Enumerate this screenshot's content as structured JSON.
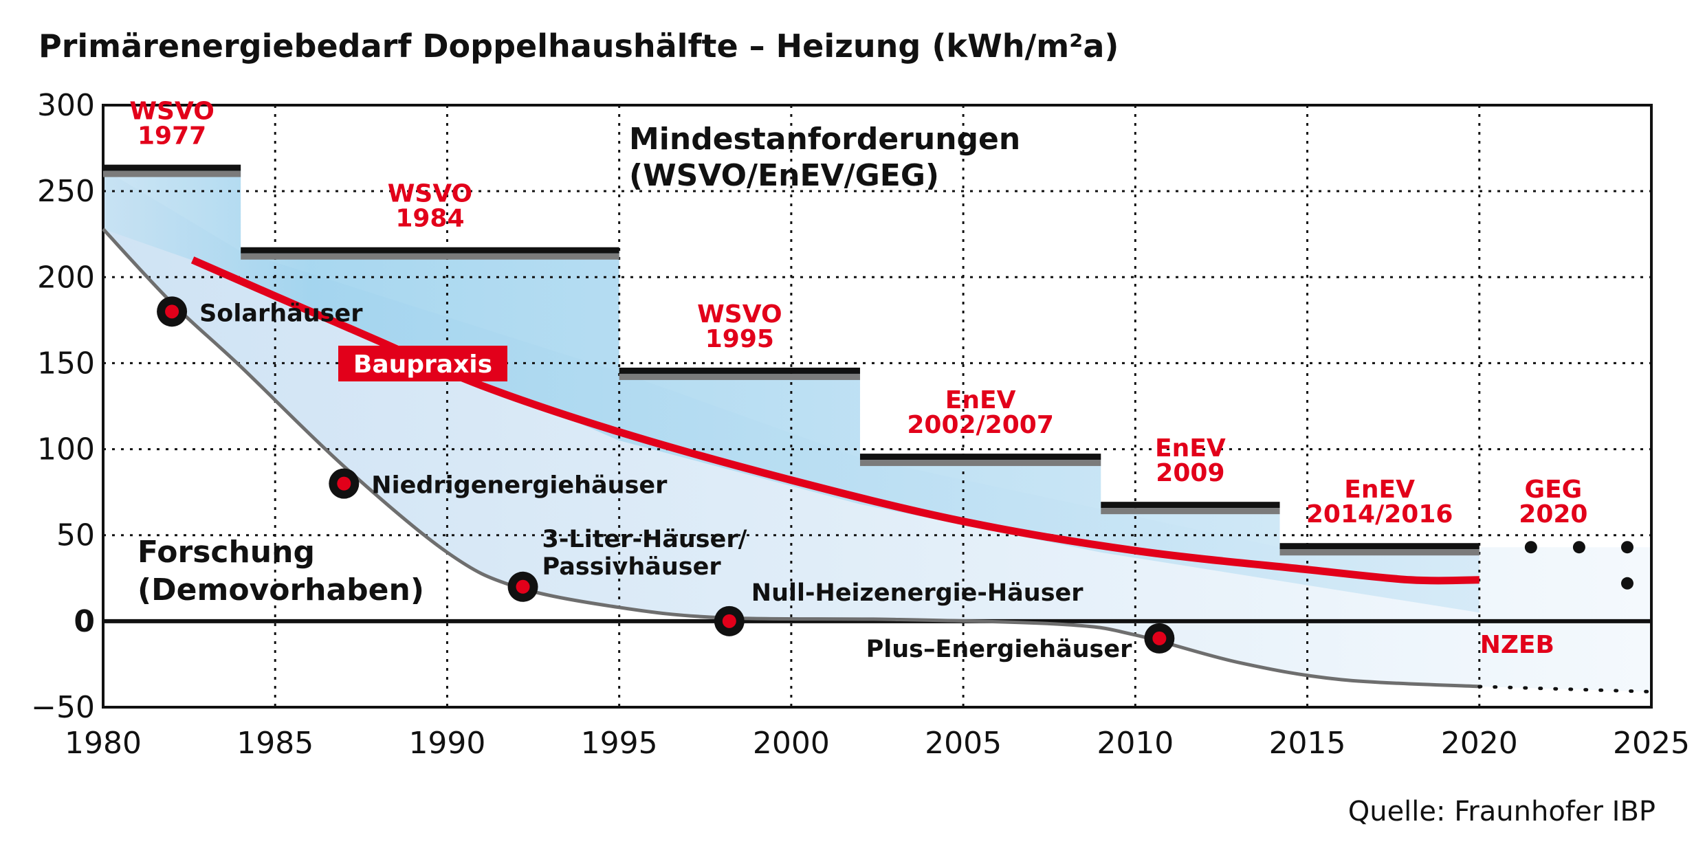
{
  "title": "Primärenergiebedarf Doppelhaushälfte – Heizung (kWh/m²a)",
  "source": "Quelle: Fraunhofer IBP",
  "chart_data": {
    "type": "line",
    "xlim": [
      1980,
      2025
    ],
    "ylim": [
      -50,
      300
    ],
    "x_ticks": [
      "1980",
      "1985",
      "1990",
      "1995",
      "2000",
      "2005",
      "2010",
      "2015",
      "2020",
      "2025"
    ],
    "y_ticks": [
      "300",
      "250",
      "200",
      "150",
      "100",
      "50",
      "0",
      "−50"
    ],
    "grid": true,
    "requirements_title": [
      "Mindestanforderungen",
      "(WSVO/EnEV/GEG)"
    ],
    "requirements": [
      {
        "lines": [
          "WSVO",
          "1977"
        ],
        "x_start": 1980,
        "x_end": 1984,
        "value": 263
      },
      {
        "lines": [
          "WSVO",
          "1984"
        ],
        "x_start": 1984,
        "x_end": 1995,
        "value": 215
      },
      {
        "lines": [
          "WSVO",
          "1995"
        ],
        "x_start": 1995,
        "x_end": 2002,
        "value": 145
      },
      {
        "lines": [
          "EnEV",
          "2002/2007"
        ],
        "x_start": 2002,
        "x_end": 2009,
        "value": 95
      },
      {
        "lines": [
          "EnEV",
          "2009"
        ],
        "x_start": 2009,
        "x_end": 2014.2,
        "value": 67
      },
      {
        "lines": [
          "EnEV",
          "2014/2016"
        ],
        "x_start": 2014.2,
        "x_end": 2020,
        "value": 43
      },
      {
        "lines": [
          "GEG",
          "2020"
        ],
        "x_start": 2020,
        "x_end": 2024.3,
        "value": 43,
        "dotted": true
      }
    ],
    "series": [
      {
        "name": "Baupraxis",
        "color": "#e2001a",
        "x": [
          1982.6,
          1985,
          1988,
          1991,
          1995,
          2000,
          2005,
          2010,
          2015,
          2018,
          2020
        ],
        "y": [
          210,
          189,
          163,
          137,
          110,
          82,
          58,
          41,
          30,
          24,
          24
        ]
      },
      {
        "name": "Forschung (Demovorhaben)",
        "color": "#6e6e6e",
        "x": [
          1980,
          1982,
          1984,
          1987,
          1990,
          1992,
          1995,
          1998,
          2003,
          2008,
          2010,
          2013,
          2016,
          2020
        ],
        "y": [
          228,
          185,
          148,
          90,
          40,
          20,
          8,
          2,
          1,
          -2,
          -8,
          -24,
          -34,
          -38
        ],
        "dotted_extension": {
          "x": [
            2020,
            2025
          ],
          "y": [
            -38,
            -41
          ]
        }
      }
    ],
    "milestones": [
      {
        "label": "Solarhäuser",
        "x": 1982,
        "y": 180
      },
      {
        "label": "Niedrigenergiehäuser",
        "x": 1987,
        "y": 80
      },
      {
        "label": [
          "3-Liter-Häuser/",
          "Passivhäuser"
        ],
        "x": 1992.2,
        "y": 20
      },
      {
        "label": "Null-Heizenergie-Häuser",
        "x": 1998.2,
        "y": 0
      },
      {
        "label": "Plus–Energiehäuser",
        "x": 2010.7,
        "y": -10
      }
    ],
    "annotations": {
      "research": [
        "Forschung",
        "(Demovorhaben)"
      ],
      "nzeb": "NZEB"
    }
  }
}
